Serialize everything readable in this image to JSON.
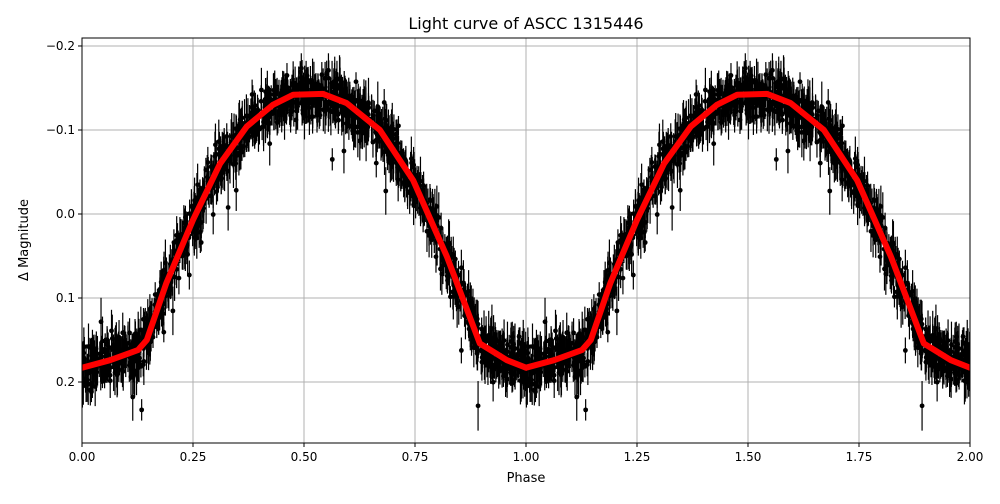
{
  "chart_data": {
    "type": "scatter",
    "title": "Light curve of ASCC 1315446",
    "xlabel": "Phase",
    "ylabel": "Δ Magnitude",
    "xlim": [
      0,
      2
    ],
    "ylim": [
      0.2726,
      -0.2095
    ],
    "y_inverted": true,
    "grid": true,
    "x_ticks": [
      "0.00",
      "0.25",
      "0.50",
      "0.75",
      "1.00",
      "1.25",
      "1.50",
      "1.75",
      "2.00"
    ],
    "x_tick_values": [
      0,
      0.25,
      0.5,
      0.75,
      1.0,
      1.25,
      1.5,
      1.75,
      2.0
    ],
    "y_ticks": [
      "−0.2",
      "−0.1",
      "0.0",
      "0.1",
      "0.2"
    ],
    "y_tick_values": [
      -0.2,
      -0.1,
      0.0,
      0.1,
      0.2
    ],
    "colors": {
      "observations": "#000000",
      "model": "#ff0000",
      "grid": "#b0b0b0"
    },
    "series": [
      {
        "kind": "errorbar-scatter",
        "color": "#000000",
        "description_of_values": "observations with error bars scattered around the model curve, repeated for phase 0–1 and 1–2"
      },
      {
        "kind": "line",
        "color": "#ff0000",
        "phase": [
          0.0,
          0.063,
          0.126,
          0.146,
          0.19,
          0.25,
          0.311,
          0.371,
          0.43,
          0.476,
          0.543,
          0.596,
          0.671,
          0.746,
          0.822,
          0.896,
          0.957,
          1.0
        ],
        "magnitude": [
          0.183,
          0.174,
          0.162,
          0.15,
          0.082,
          0.007,
          -0.06,
          -0.104,
          -0.13,
          -0.142,
          -0.143,
          -0.132,
          -0.1,
          -0.04,
          0.051,
          0.154,
          0.174,
          0.183
        ]
      }
    ]
  }
}
